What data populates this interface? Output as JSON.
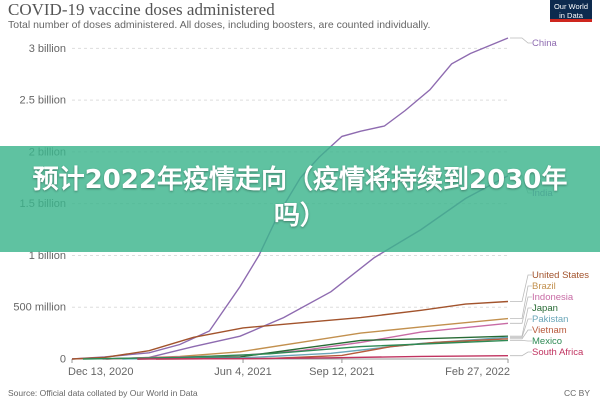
{
  "header": {
    "title": "COVID-19 vaccine doses administered",
    "subtitle": "Total number of doses administered. All doses, including boosters, are counted individually.",
    "logo_line1": "Our World",
    "logo_line2": "in Data"
  },
  "banner": {
    "text": "预计2022年疫情走向（疫情将持续到2030年吗）"
  },
  "footer": {
    "source": "Source: Official data collated by Our World in Data",
    "license": "CC BY"
  },
  "chart_data": {
    "type": "line",
    "title": "COVID-19 vaccine doses administered",
    "subtitle": "Total number of doses administered. All doses, including boosters, are counted individually.",
    "xlabel": "",
    "ylabel": "",
    "x_ticks": [
      "Dec 13, 2020",
      "Jun 4, 2021",
      "Sep 12, 2021",
      "Feb 27, 2022"
    ],
    "y_ticks": [
      {
        "value": 0,
        "label": "0"
      },
      {
        "value": 500000000,
        "label": "500 million"
      },
      {
        "value": 1000000000,
        "label": "1 billion"
      },
      {
        "value": 1500000000,
        "label": "1.5 billion"
      },
      {
        "value": 2000000000,
        "label": "2 billion"
      },
      {
        "value": 2500000000,
        "label": "2.5 billion"
      },
      {
        "value": 3000000000,
        "label": "3 billion"
      }
    ],
    "xlim": [
      "2020-12-13",
      "2022-02-27"
    ],
    "ylim": [
      0,
      3100000000
    ],
    "grid": "horizontal-dashed",
    "legend": "right, labels at line ends",
    "series": [
      {
        "name": "China",
        "color": "#8e6bb0",
        "points": [
          [
            "2020-12-13",
            0
          ],
          [
            "2021-01-15",
            20000000
          ],
          [
            "2021-03-01",
            60000000
          ],
          [
            "2021-04-01",
            140000000
          ],
          [
            "2021-05-01",
            270000000
          ],
          [
            "2021-06-01",
            700000000
          ],
          [
            "2021-06-20",
            1000000000
          ],
          [
            "2021-07-10",
            1400000000
          ],
          [
            "2021-08-01",
            1750000000
          ],
          [
            "2021-08-20",
            1950000000
          ],
          [
            "2021-09-12",
            2150000000
          ],
          [
            "2021-10-01",
            2200000000
          ],
          [
            "2021-10-25",
            2250000000
          ],
          [
            "2021-11-15",
            2400000000
          ],
          [
            "2021-12-10",
            2600000000
          ],
          [
            "2022-01-01",
            2850000000
          ],
          [
            "2022-01-20",
            2950000000
          ],
          [
            "2022-02-27",
            3100000000
          ]
        ]
      },
      {
        "name": "India",
        "color": "#8e6bb0",
        "points": [
          [
            "2021-01-16",
            0
          ],
          [
            "2021-03-01",
            15000000
          ],
          [
            "2021-04-15",
            120000000
          ],
          [
            "2021-06-01",
            220000000
          ],
          [
            "2021-07-15",
            400000000
          ],
          [
            "2021-09-01",
            650000000
          ],
          [
            "2021-10-15",
            980000000
          ],
          [
            "2021-12-01",
            1250000000
          ],
          [
            "2022-01-15",
            1550000000
          ],
          [
            "2022-02-27",
            1770000000
          ]
        ]
      },
      {
        "name": "United States",
        "color": "#a2532c",
        "points": [
          [
            "2020-12-13",
            0
          ],
          [
            "2021-01-15",
            15000000
          ],
          [
            "2021-03-01",
            80000000
          ],
          [
            "2021-04-15",
            210000000
          ],
          [
            "2021-06-04",
            300000000
          ],
          [
            "2021-08-01",
            350000000
          ],
          [
            "2021-10-01",
            400000000
          ],
          [
            "2021-12-01",
            470000000
          ],
          [
            "2022-01-15",
            530000000
          ],
          [
            "2022-02-27",
            555000000
          ]
        ]
      },
      {
        "name": "Brazil",
        "color": "#c2904e",
        "points": [
          [
            "2021-01-17",
            0
          ],
          [
            "2021-04-01",
            25000000
          ],
          [
            "2021-06-01",
            70000000
          ],
          [
            "2021-08-01",
            160000000
          ],
          [
            "2021-10-01",
            250000000
          ],
          [
            "2021-12-01",
            310000000
          ],
          [
            "2022-02-27",
            390000000
          ]
        ]
      },
      {
        "name": "Indonesia",
        "color": "#c86ba5",
        "points": [
          [
            "2021-01-13",
            0
          ],
          [
            "2021-06-01",
            35000000
          ],
          [
            "2021-08-01",
            80000000
          ],
          [
            "2021-10-01",
            160000000
          ],
          [
            "2021-12-01",
            260000000
          ],
          [
            "2022-02-27",
            345000000
          ]
        ]
      },
      {
        "name": "Japan",
        "color": "#286b35",
        "points": [
          [
            "2021-02-17",
            0
          ],
          [
            "2021-06-01",
            20000000
          ],
          [
            "2021-08-01",
            100000000
          ],
          [
            "2021-10-01",
            180000000
          ],
          [
            "2021-12-01",
            195000000
          ],
          [
            "2022-02-27",
            220000000
          ]
        ]
      },
      {
        "name": "Pakistan",
        "color": "#6aa6b8",
        "points": [
          [
            "2021-02-02",
            0
          ],
          [
            "2021-06-01",
            10000000
          ],
          [
            "2021-09-01",
            55000000
          ],
          [
            "2021-12-01",
            150000000
          ],
          [
            "2022-02-27",
            210000000
          ]
        ]
      },
      {
        "name": "Vietnam",
        "color": "#b85a3c",
        "points": [
          [
            "2021-03-08",
            0
          ],
          [
            "2021-07-01",
            5000000
          ],
          [
            "2021-09-12",
            35000000
          ],
          [
            "2021-11-01",
            120000000
          ],
          [
            "2021-12-15",
            160000000
          ],
          [
            "2022-02-27",
            195000000
          ]
        ]
      },
      {
        "name": "Mexico",
        "color": "#2f8a55",
        "points": [
          [
            "2020-12-24",
            0
          ],
          [
            "2021-04-01",
            15000000
          ],
          [
            "2021-07-01",
            50000000
          ],
          [
            "2021-10-01",
            120000000
          ],
          [
            "2021-12-15",
            150000000
          ],
          [
            "2022-02-27",
            180000000
          ]
        ]
      },
      {
        "name": "South Africa",
        "color": "#c03360",
        "points": [
          [
            "2021-02-17",
            0
          ],
          [
            "2021-06-01",
            3000000
          ],
          [
            "2021-09-01",
            12000000
          ],
          [
            "2021-12-01",
            25000000
          ],
          [
            "2022-02-27",
            32000000
          ]
        ]
      }
    ]
  }
}
